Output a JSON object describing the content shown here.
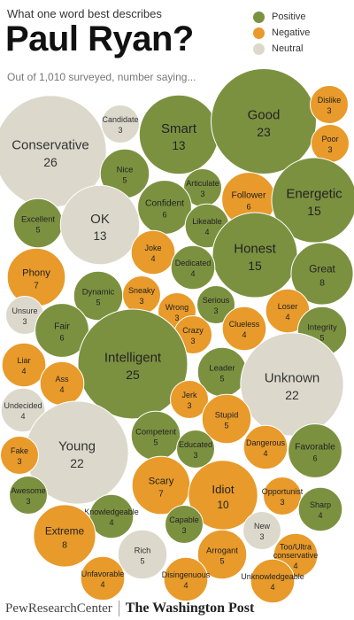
{
  "header": {
    "question": "What one word best describes",
    "title": "Paul Ryan?",
    "subtitle": "Out of 1,010 surveyed, number saying..."
  },
  "legend": [
    {
      "label": "Positive",
      "color": "#7c9140"
    },
    {
      "label": "Negative",
      "color": "#e89a2a"
    },
    {
      "label": "Neutral",
      "color": "#dcd9cc"
    }
  ],
  "footer": {
    "pew": "PewResearchCenter",
    "wapo": "The Washington Post"
  },
  "chart_data": {
    "type": "bubble",
    "title": "Paul Ryan?",
    "colors": {
      "Positive": "#7c9140",
      "Negative": "#e89a2a",
      "Neutral": "#dcd9cc"
    },
    "bubbles": [
      {
        "word": "Conservative",
        "count": 26,
        "category": "Neutral"
      },
      {
        "word": "Candidate",
        "count": 3,
        "category": "Neutral"
      },
      {
        "word": "Smart",
        "count": 13,
        "category": "Positive"
      },
      {
        "word": "Good",
        "count": 23,
        "category": "Positive"
      },
      {
        "word": "Dislike",
        "count": 3,
        "category": "Negative"
      },
      {
        "word": "Poor",
        "count": 3,
        "category": "Negative"
      },
      {
        "word": "Nice",
        "count": 5,
        "category": "Positive"
      },
      {
        "word": "Articulate",
        "count": 3,
        "category": "Positive"
      },
      {
        "word": "Follower",
        "count": 6,
        "category": "Negative"
      },
      {
        "word": "Energetic",
        "count": 15,
        "category": "Positive"
      },
      {
        "word": "Confident",
        "count": 6,
        "category": "Positive"
      },
      {
        "word": "Excellent",
        "count": 5,
        "category": "Positive"
      },
      {
        "word": "OK",
        "count": 13,
        "category": "Neutral"
      },
      {
        "word": "Likeable",
        "count": 4,
        "category": "Positive"
      },
      {
        "word": "Joke",
        "count": 4,
        "category": "Negative"
      },
      {
        "word": "Honest",
        "count": 15,
        "category": "Positive"
      },
      {
        "word": "Great",
        "count": 8,
        "category": "Positive"
      },
      {
        "word": "Phony",
        "count": 7,
        "category": "Negative"
      },
      {
        "word": "Dedicated",
        "count": 4,
        "category": "Positive"
      },
      {
        "word": "Dynamic",
        "count": 5,
        "category": "Positive"
      },
      {
        "word": "Sneaky",
        "count": 3,
        "category": "Negative"
      },
      {
        "word": "Unsure",
        "count": 3,
        "category": "Neutral"
      },
      {
        "word": "Serious",
        "count": 3,
        "category": "Positive"
      },
      {
        "word": "Wrong",
        "count": 3,
        "category": "Negative"
      },
      {
        "word": "Loser",
        "count": 4,
        "category": "Negative"
      },
      {
        "word": "Clueless",
        "count": 4,
        "category": "Negative"
      },
      {
        "word": "Integrity",
        "count": 5,
        "category": "Positive"
      },
      {
        "word": "Fair",
        "count": 6,
        "category": "Positive"
      },
      {
        "word": "Crazy",
        "count": 3,
        "category": "Negative"
      },
      {
        "word": "Liar",
        "count": 4,
        "category": "Negative"
      },
      {
        "word": "Intelligent",
        "count": 25,
        "category": "Positive"
      },
      {
        "word": "Leader",
        "count": 5,
        "category": "Positive"
      },
      {
        "word": "Unknown",
        "count": 22,
        "category": "Neutral"
      },
      {
        "word": "Ass",
        "count": 4,
        "category": "Negative"
      },
      {
        "word": "Jerk",
        "count": 3,
        "category": "Negative"
      },
      {
        "word": "Undecided",
        "count": 4,
        "category": "Neutral"
      },
      {
        "word": "Stupid",
        "count": 5,
        "category": "Negative"
      },
      {
        "word": "Competent",
        "count": 5,
        "category": "Positive"
      },
      {
        "word": "Young",
        "count": 22,
        "category": "Neutral"
      },
      {
        "word": "Dangerous",
        "count": 4,
        "category": "Negative"
      },
      {
        "word": "Favorable",
        "count": 6,
        "category": "Positive"
      },
      {
        "word": "Fake",
        "count": 3,
        "category": "Negative"
      },
      {
        "word": "Educated",
        "count": 3,
        "category": "Positive"
      },
      {
        "word": "Scary",
        "count": 7,
        "category": "Negative"
      },
      {
        "word": "Idiot",
        "count": 10,
        "category": "Negative"
      },
      {
        "word": "Opportunist",
        "count": 3,
        "category": "Negative"
      },
      {
        "word": "Awesome",
        "count": 3,
        "category": "Positive"
      },
      {
        "word": "Sharp",
        "count": 4,
        "category": "Positive"
      },
      {
        "word": "Knowledgeable",
        "count": 4,
        "category": "Positive"
      },
      {
        "word": "Extreme",
        "count": 8,
        "category": "Negative"
      },
      {
        "word": "Capable",
        "count": 3,
        "category": "Positive"
      },
      {
        "word": "New",
        "count": 3,
        "category": "Neutral"
      },
      {
        "word": "Rich",
        "count": 5,
        "category": "Neutral"
      },
      {
        "word": "Arrogant",
        "count": 5,
        "category": "Negative"
      },
      {
        "word": "Too/Ultra conservative",
        "count": 4,
        "category": "Negative"
      },
      {
        "word": "Unfavorable",
        "count": 4,
        "category": "Negative"
      },
      {
        "word": "Disingenuous",
        "count": 4,
        "category": "Negative"
      },
      {
        "word": "Unknowledgeable",
        "count": 4,
        "category": "Negative"
      }
    ]
  }
}
